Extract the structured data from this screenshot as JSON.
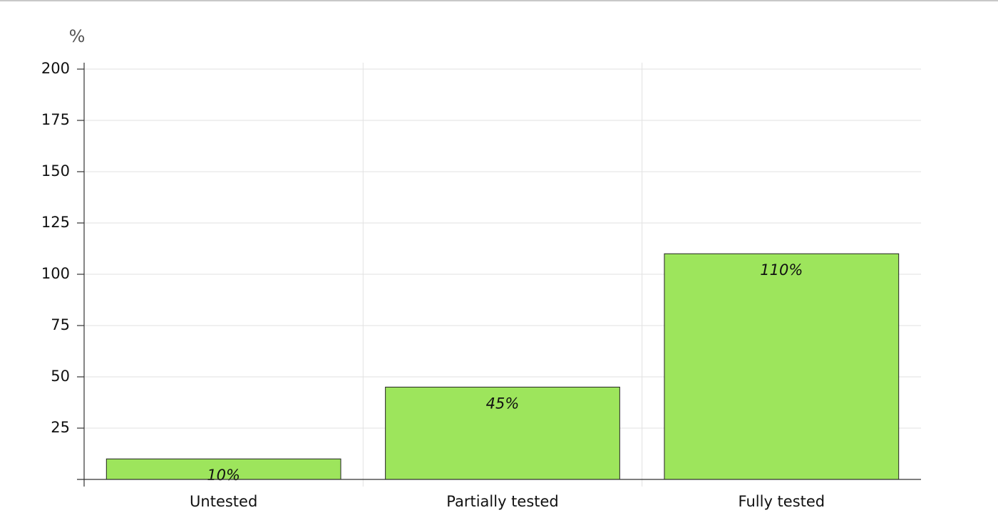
{
  "chart_data": {
    "type": "bar",
    "y_label": "%",
    "categories": [
      "Untested",
      "Partially tested",
      "Fully tested"
    ],
    "values": [
      10,
      45,
      110
    ],
    "value_labels": [
      "10%",
      "45%",
      "110%"
    ],
    "color": "#9de55c",
    "ylim": [
      0,
      200
    ],
    "yticks": [
      25,
      50,
      75,
      100,
      125,
      150,
      175,
      200
    ],
    "grid": true
  }
}
